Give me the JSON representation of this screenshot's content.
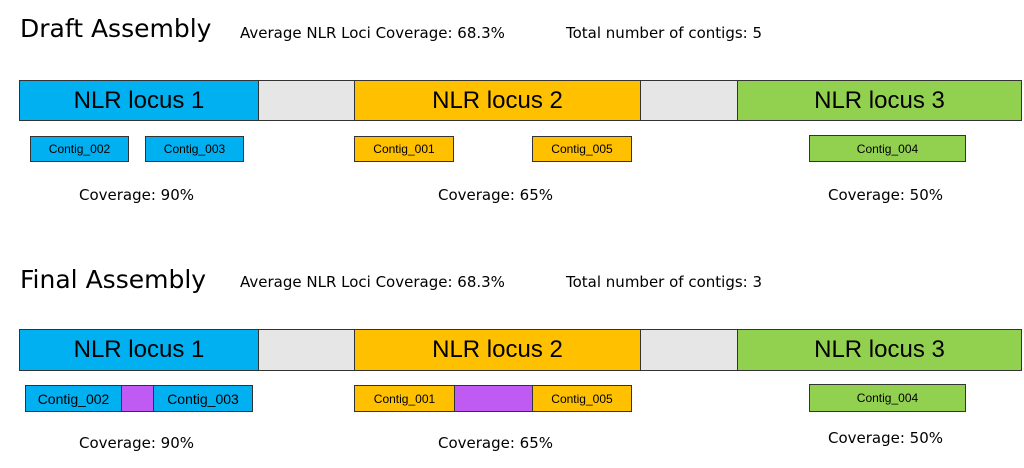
{
  "colors": {
    "locus1": "#00b0f0",
    "locus2": "#ffc000",
    "locus3": "#92d050",
    "gap": "#e7e6e6",
    "merge_filler": "#bf5af2"
  },
  "draft": {
    "title": "Draft Assembly",
    "avg_coverage": "Average NLR Loci Coverage: 68.3%",
    "total_contigs": "Total number of contigs: 5",
    "loci": [
      {
        "label": "NLR locus 1",
        "coverage": "Coverage: 90%",
        "contigs": [
          "Contig_002",
          "Contig_003"
        ]
      },
      {
        "label": "NLR locus 2",
        "coverage": "Coverage: 65%",
        "contigs": [
          "Contig_001",
          "Contig_005"
        ]
      },
      {
        "label": "NLR locus 3",
        "coverage": "Coverage: 50%",
        "contigs": [
          "Contig_004"
        ]
      }
    ]
  },
  "final": {
    "title": "Final Assembly",
    "avg_coverage": "Average NLR Loci Coverage: 68.3%",
    "total_contigs": "Total number of contigs: 3",
    "loci": [
      {
        "label": "NLR locus 1",
        "coverage": "Coverage: 90%",
        "contigs": [
          "Contig_002",
          "Contig_003"
        ]
      },
      {
        "label": "NLR locus 2",
        "coverage": "Coverage: 65%",
        "contigs": [
          "Contig_001",
          "Contig_005"
        ]
      },
      {
        "label": "NLR locus 3",
        "coverage": "Coverage: 50%",
        "contigs": [
          "Contig_004"
        ]
      }
    ]
  }
}
